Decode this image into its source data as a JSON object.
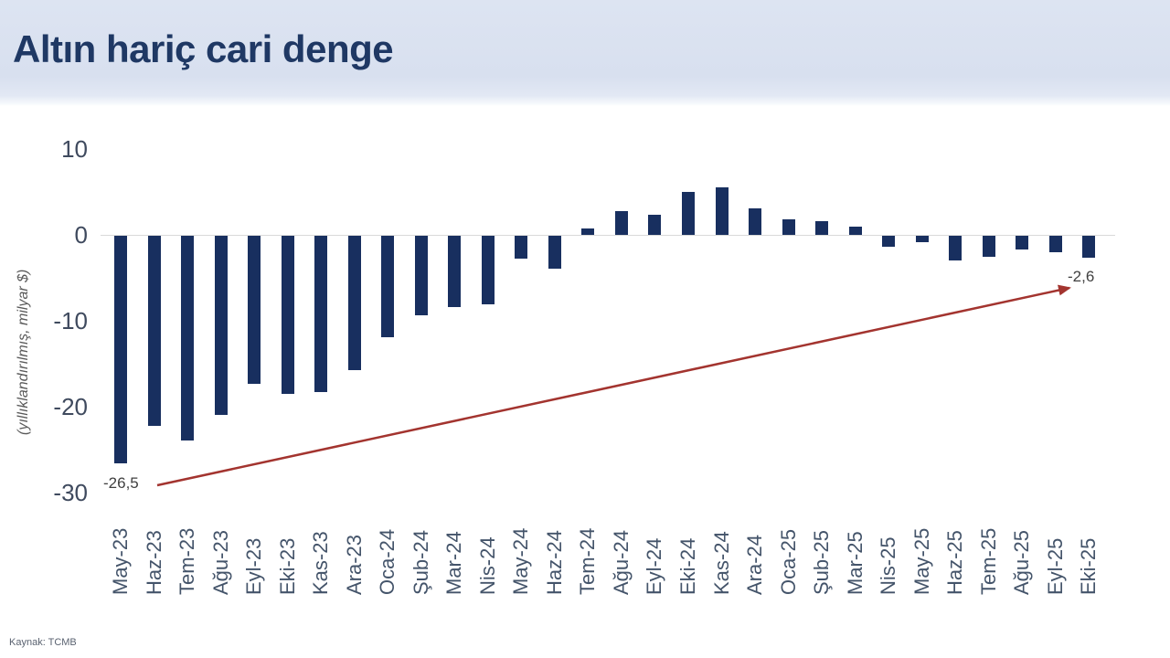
{
  "header": {
    "title": "Altın hariç cari denge"
  },
  "footer": {
    "source": "Kaynak: TCMB"
  },
  "colors": {
    "bar": "#182f5f",
    "arrow": "#a3342f",
    "title_text": "#1f3864",
    "header_bg": "#d8e0ef",
    "zero_line": "#d9d9d9",
    "axis_text": "#3f4a5e",
    "data_label_text": "#404040",
    "source_text": "#5a6270"
  },
  "chart_data": {
    "type": "bar",
    "title": "Altın hariç cari denge",
    "ylabel": "(yıllıklandırılmış, milyar $)",
    "xlabel": "",
    "categories": [
      "May-23",
      "Haz-23",
      "Tem-23",
      "Ağu-23",
      "Eyl-23",
      "Eki-23",
      "Kas-23",
      "Ara-23",
      "Oca-24",
      "Şub-24",
      "Mar-24",
      "Nis-24",
      "May-24",
      "Haz-24",
      "Tem-24",
      "Ağu-24",
      "Eyl-24",
      "Eki-24",
      "Kas-24",
      "Ara-24",
      "Oca-25",
      "Şub-25",
      "Mar-25",
      "Nis-25",
      "May-25",
      "Haz-25",
      "Tem-25",
      "Ağu-25",
      "Eyl-25",
      "Eki-25"
    ],
    "values": [
      -26.5,
      -22.1,
      -23.8,
      -20.9,
      -17.2,
      -18.4,
      -18.2,
      -15.6,
      -11.8,
      -9.3,
      -8.3,
      -8.0,
      -2.7,
      -3.8,
      0.7,
      2.8,
      2.3,
      5.0,
      5.5,
      3.1,
      1.8,
      1.6,
      1.0,
      -1.3,
      -0.7,
      -2.9,
      -2.4,
      -1.6,
      -1.9,
      -2.6
    ],
    "yticks": [
      10,
      0,
      -10,
      -20,
      -30
    ],
    "ytick_labels": [
      "10",
      "0",
      "-10",
      "-20",
      "-30"
    ],
    "ylim": [
      -30,
      10
    ],
    "grid": "zero-line-only",
    "legend": "none",
    "annotations": {
      "min_label": {
        "text": "-26,5",
        "category": "May-23",
        "value": -26.5
      },
      "end_label": {
        "text": "-2,6",
        "category": "Eki-25",
        "value": -2.6
      },
      "trend_arrow": {
        "from_category": "May-23",
        "to_category": "Eki-25"
      }
    }
  }
}
